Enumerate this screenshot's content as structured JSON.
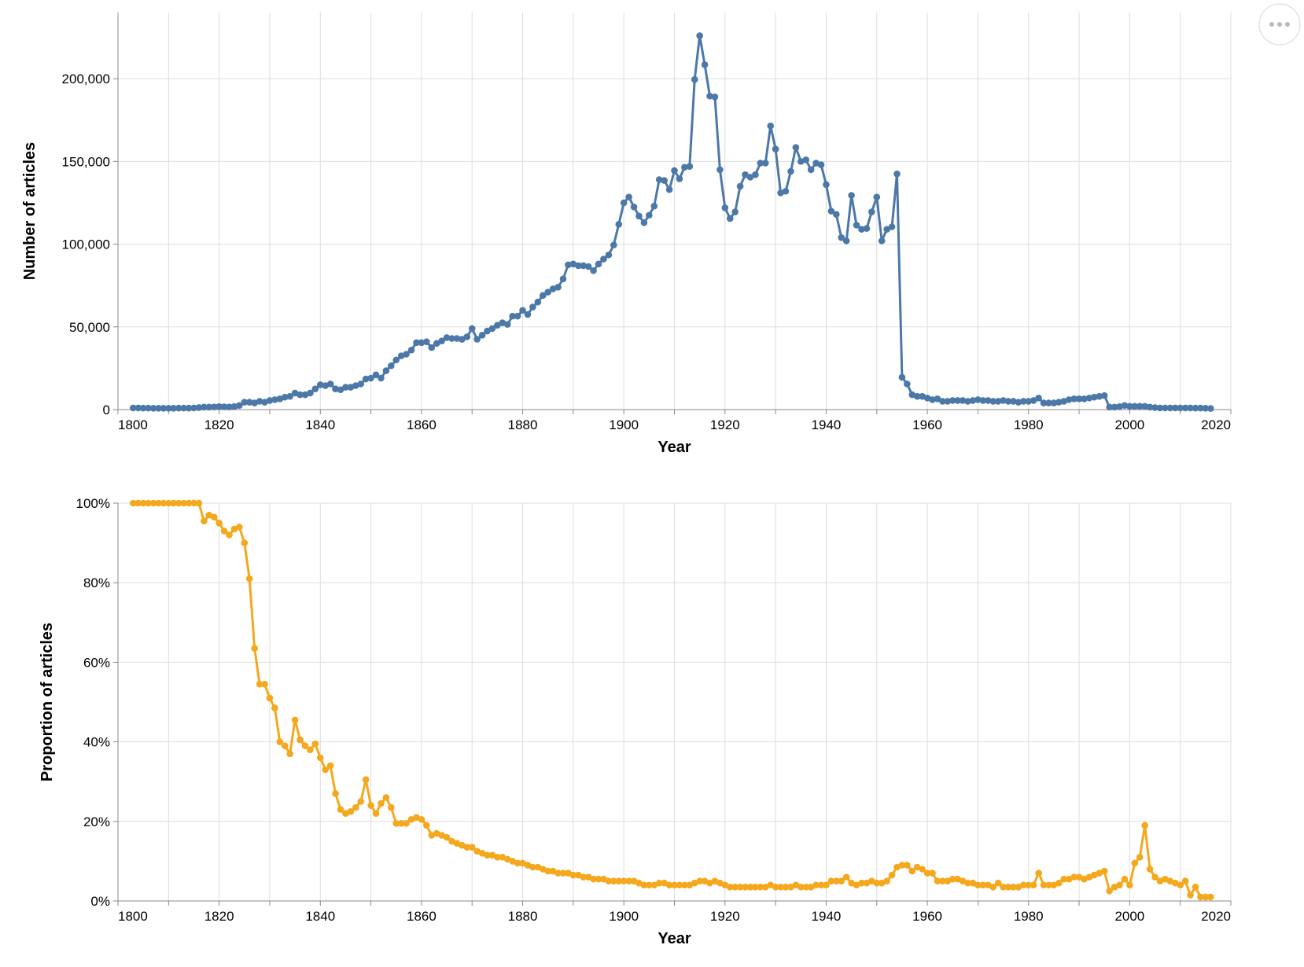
{
  "chart_data": [
    {
      "type": "line",
      "xlabel": "Year",
      "ylabel": "Number of articles",
      "grid": true,
      "xlim": [
        1800,
        2020
      ],
      "xticks": [
        1800,
        1820,
        1840,
        1860,
        1880,
        1900,
        1920,
        1940,
        1960,
        1980,
        2000,
        2020
      ],
      "xminor": [
        1810,
        1830,
        1850,
        1870,
        1890,
        1910,
        1930,
        1950,
        1970,
        1990,
        2010
      ],
      "ylim": [
        0,
        240000
      ],
      "yticks": [
        0,
        {
          "value": 50000,
          "label": "50,000"
        },
        {
          "value": 100000,
          "label": "100,000"
        },
        {
          "value": 150000,
          "label": "150,000"
        },
        {
          "value": 200000,
          "label": "200,000"
        }
      ],
      "x": [
        1803,
        1804,
        1805,
        1806,
        1807,
        1808,
        1809,
        1810,
        1811,
        1812,
        1813,
        1814,
        1815,
        1816,
        1817,
        1818,
        1819,
        1820,
        1821,
        1822,
        1823,
        1824,
        1825,
        1826,
        1827,
        1828,
        1829,
        1830,
        1831,
        1832,
        1833,
        1834,
        1835,
        1836,
        1837,
        1838,
        1839,
        1840,
        1841,
        1842,
        1843,
        1844,
        1845,
        1846,
        1847,
        1848,
        1849,
        1850,
        1851,
        1852,
        1853,
        1854,
        1855,
        1856,
        1857,
        1858,
        1859,
        1860,
        1861,
        1862,
        1863,
        1864,
        1865,
        1866,
        1867,
        1868,
        1869,
        1870,
        1871,
        1872,
        1873,
        1874,
        1875,
        1876,
        1877,
        1878,
        1879,
        1880,
        1881,
        1882,
        1883,
        1884,
        1885,
        1886,
        1887,
        1888,
        1889,
        1890,
        1891,
        1892,
        1893,
        1894,
        1895,
        1896,
        1897,
        1898,
        1899,
        1900,
        1901,
        1902,
        1903,
        1904,
        1905,
        1906,
        1907,
        1908,
        1909,
        1910,
        1911,
        1912,
        1913,
        1914,
        1915,
        1916,
        1917,
        1918,
        1919,
        1920,
        1921,
        1922,
        1923,
        1924,
        1925,
        1926,
        1927,
        1928,
        1929,
        1930,
        1931,
        1932,
        1933,
        1934,
        1935,
        1936,
        1937,
        1938,
        1939,
        1940,
        1941,
        1942,
        1943,
        1944,
        1945,
        1946,
        1947,
        1948,
        1949,
        1950,
        1951,
        1952,
        1953,
        1954,
        1955,
        1956,
        1957,
        1958,
        1959,
        1960,
        1961,
        1962,
        1963,
        1964,
        1965,
        1966,
        1967,
        1968,
        1969,
        1970,
        1971,
        1972,
        1973,
        1974,
        1975,
        1976,
        1977,
        1978,
        1979,
        1980,
        1981,
        1982,
        1983,
        1984,
        1985,
        1986,
        1987,
        1988,
        1989,
        1990,
        1991,
        1992,
        1993,
        1994,
        1995,
        1996,
        1997,
        1998,
        1999,
        2000,
        2001,
        2002,
        2003,
        2004,
        2005,
        2006,
        2007,
        2008,
        2009,
        2010,
        2011,
        2012,
        2013,
        2014,
        2015,
        2016
      ],
      "series": [
        {
          "color": "#4c78a8",
          "values": [
            1000,
            1000,
            900,
            900,
            800,
            800,
            800,
            800,
            800,
            900,
            900,
            900,
            1000,
            1200,
            1500,
            1500,
            1600,
            1800,
            1700,
            1600,
            1800,
            2500,
            4500,
            4500,
            4000,
            5000,
            4500,
            5500,
            6000,
            6500,
            7500,
            8000,
            10000,
            9000,
            9000,
            10000,
            12500,
            15000,
            14500,
            15500,
            12500,
            12000,
            13500,
            13500,
            14500,
            15500,
            18500,
            19000,
            21000,
            19000,
            23500,
            26500,
            30000,
            32500,
            33500,
            36000,
            40500,
            40500,
            41000,
            37500,
            40000,
            41500,
            43500,
            43000,
            43000,
            42500,
            44000,
            49000,
            42500,
            45000,
            47500,
            49000,
            51000,
            52500,
            51500,
            56500,
            56500,
            60000,
            57500,
            62000,
            65000,
            69000,
            71000,
            73000,
            74000,
            79000,
            87500,
            88000,
            87000,
            87000,
            86500,
            84000,
            88000,
            91000,
            93500,
            99500,
            112000,
            125000,
            128500,
            122500,
            117000,
            113000,
            117500,
            123000,
            139000,
            138500,
            133000,
            144500,
            139500,
            146500,
            147000,
            199500,
            226000,
            208500,
            189500,
            189000,
            145000,
            122000,
            115500,
            119500,
            135000,
            142000,
            140500,
            142000,
            149000,
            149000,
            171500,
            157500,
            131000,
            132000,
            144000,
            158500,
            150000,
            151000,
            145000,
            149000,
            148000,
            136000,
            120000,
            118000,
            104000,
            102000,
            129500,
            111500,
            109000,
            109500,
            119500,
            128500,
            102000,
            109000,
            110500,
            142500,
            19500,
            15500,
            9000,
            8000,
            8000,
            7000,
            6000,
            6500,
            5000,
            5000,
            5500,
            5500,
            5500,
            5000,
            5500,
            6000,
            5500,
            5500,
            5000,
            5000,
            5500,
            5000,
            5000,
            4500,
            5000,
            5000,
            5500,
            7000,
            4000,
            4000,
            4000,
            4500,
            5000,
            6000,
            6500,
            6500,
            6500,
            7000,
            7500,
            8000,
            8500,
            1500,
            1500,
            1800,
            2500,
            2000,
            2000,
            2000,
            2000,
            1500,
            1200,
            1000,
            1000,
            1000,
            1000,
            1000,
            1000,
            1000,
            900,
            900,
            800,
            700
          ]
        }
      ]
    },
    {
      "type": "line",
      "xlabel": "Year",
      "ylabel": "Proportion of articles",
      "grid": true,
      "xlim": [
        1800,
        2020
      ],
      "xticks": [
        1800,
        1820,
        1840,
        1860,
        1880,
        1900,
        1920,
        1940,
        1960,
        1980,
        2000,
        2020
      ],
      "xminor": [
        1810,
        1830,
        1850,
        1870,
        1890,
        1910,
        1930,
        1950,
        1970,
        1990,
        2010
      ],
      "ylim": [
        0,
        100
      ],
      "yticks": [
        {
          "value": 0,
          "label": "0%"
        },
        {
          "value": 20,
          "label": "20%"
        },
        {
          "value": 40,
          "label": "40%"
        },
        {
          "value": 60,
          "label": "60%"
        },
        {
          "value": 80,
          "label": "80%"
        },
        {
          "value": 100,
          "label": "100%"
        }
      ],
      "x": [
        1803,
        1804,
        1805,
        1806,
        1807,
        1808,
        1809,
        1810,
        1811,
        1812,
        1813,
        1814,
        1815,
        1816,
        1817,
        1818,
        1819,
        1820,
        1821,
        1822,
        1823,
        1824,
        1825,
        1826,
        1827,
        1828,
        1829,
        1830,
        1831,
        1832,
        1833,
        1834,
        1835,
        1836,
        1837,
        1838,
        1839,
        1840,
        1841,
        1842,
        1843,
        1844,
        1845,
        1846,
        1847,
        1848,
        1849,
        1850,
        1851,
        1852,
        1853,
        1854,
        1855,
        1856,
        1857,
        1858,
        1859,
        1860,
        1861,
        1862,
        1863,
        1864,
        1865,
        1866,
        1867,
        1868,
        1869,
        1870,
        1871,
        1872,
        1873,
        1874,
        1875,
        1876,
        1877,
        1878,
        1879,
        1880,
        1881,
        1882,
        1883,
        1884,
        1885,
        1886,
        1887,
        1888,
        1889,
        1890,
        1891,
        1892,
        1893,
        1894,
        1895,
        1896,
        1897,
        1898,
        1899,
        1900,
        1901,
        1902,
        1903,
        1904,
        1905,
        1906,
        1907,
        1908,
        1909,
        1910,
        1911,
        1912,
        1913,
        1914,
        1915,
        1916,
        1917,
        1918,
        1919,
        1920,
        1921,
        1922,
        1923,
        1924,
        1925,
        1926,
        1927,
        1928,
        1929,
        1930,
        1931,
        1932,
        1933,
        1934,
        1935,
        1936,
        1937,
        1938,
        1939,
        1940,
        1941,
        1942,
        1943,
        1944,
        1945,
        1946,
        1947,
        1948,
        1949,
        1950,
        1951,
        1952,
        1953,
        1954,
        1955,
        1956,
        1957,
        1958,
        1959,
        1960,
        1961,
        1962,
        1963,
        1964,
        1965,
        1966,
        1967,
        1968,
        1969,
        1970,
        1971,
        1972,
        1973,
        1974,
        1975,
        1976,
        1977,
        1978,
        1979,
        1980,
        1981,
        1982,
        1983,
        1984,
        1985,
        1986,
        1987,
        1988,
        1989,
        1990,
        1991,
        1992,
        1993,
        1994,
        1995,
        1996,
        1997,
        1998,
        1999,
        2000,
        2001,
        2002,
        2003,
        2004,
        2005,
        2006,
        2007,
        2008,
        2009,
        2010,
        2011,
        2012,
        2013,
        2014,
        2015,
        2016
      ],
      "series": [
        {
          "color": "#f4a81d",
          "values": [
            100,
            100,
            100,
            100,
            100,
            100,
            100,
            100,
            100,
            100,
            100,
            100,
            100,
            100,
            95.5,
            97,
            96.5,
            95,
            93,
            92,
            93.5,
            94,
            90,
            81,
            63.5,
            54.5,
            54.5,
            51,
            48.5,
            40,
            39,
            37,
            45.5,
            40.5,
            39,
            38,
            39.5,
            36,
            33,
            34,
            27,
            23,
            22,
            22.5,
            23.5,
            25,
            30.5,
            24,
            22,
            24.5,
            26,
            23.5,
            19.5,
            19.5,
            19.5,
            20.5,
            21,
            20.5,
            19,
            16.5,
            17,
            16.5,
            16,
            15,
            14.5,
            14,
            13.5,
            13.5,
            12.5,
            12,
            11.5,
            11.5,
            11,
            11,
            10.5,
            10,
            9.5,
            9.5,
            9,
            8.5,
            8.5,
            8,
            7.5,
            7.5,
            7,
            7,
            7,
            6.5,
            6.5,
            6,
            6,
            5.5,
            5.5,
            5.5,
            5,
            5,
            5,
            5,
            5,
            5,
            4.5,
            4,
            4,
            4,
            4.5,
            4.5,
            4,
            4,
            4,
            4,
            4,
            4.5,
            5,
            5,
            4.5,
            5,
            4.5,
            4,
            3.5,
            3.5,
            3.5,
            3.5,
            3.5,
            3.5,
            3.5,
            3.5,
            4,
            3.5,
            3.5,
            3.5,
            3.5,
            4,
            3.5,
            3.5,
            3.5,
            4,
            4,
            4,
            5,
            5,
            5,
            6,
            4.5,
            4,
            4.5,
            4.5,
            5,
            4.5,
            4.5,
            5,
            6.5,
            8.5,
            9,
            9,
            7.5,
            8.5,
            8,
            7,
            7,
            5,
            5,
            5,
            5.5,
            5.5,
            5,
            4.5,
            4.5,
            4,
            4,
            4,
            3.5,
            4.5,
            3.5,
            3.5,
            3.5,
            3.5,
            4,
            4,
            4,
            7,
            4,
            4,
            4,
            4.5,
            5.5,
            5.5,
            6,
            6,
            5.5,
            6,
            6.5,
            7,
            7.5,
            2.5,
            3.5,
            4,
            5.5,
            4,
            9.5,
            11,
            19,
            8,
            6,
            5,
            5.5,
            5,
            4.5,
            4,
            5,
            1.5,
            3.5,
            1,
            1,
            1
          ]
        }
      ]
    }
  ]
}
